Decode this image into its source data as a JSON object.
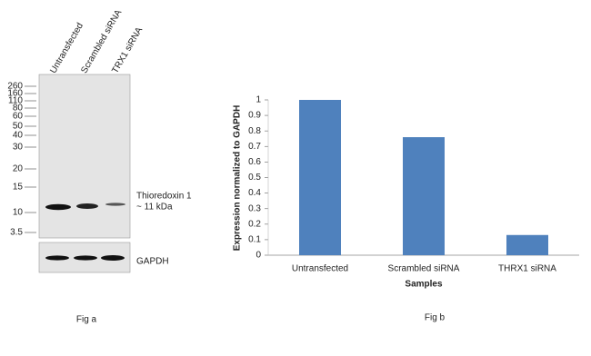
{
  "figure_a": {
    "lanes": [
      "Untransfected",
      "Scrambled siRNA",
      "TRX1 siRNA"
    ],
    "ladder": [
      "260",
      "160",
      "110",
      "80",
      "60",
      "50",
      "40",
      "30",
      "20",
      "15",
      "10",
      "3.5"
    ],
    "band_label": "Thioredoxin 1",
    "band_size": "~ 11 kDa",
    "loading_label": "GAPDH",
    "caption": "Fig a"
  },
  "chart_data": {
    "type": "bar",
    "caption": "Fig b",
    "x_label": "Samples",
    "y_label": "Expression  normalized to GAPDH",
    "categories": [
      "Untransfected",
      "Scrambled siRNA",
      "THRX1 siRNA"
    ],
    "values": [
      1,
      0.76,
      0.13
    ],
    "color": "#4f81bd",
    "ylim": [
      0,
      1
    ],
    "yticks": [
      0,
      0.1,
      0.2,
      0.3,
      0.4,
      0.5,
      0.6,
      0.7,
      0.8,
      0.9,
      1
    ],
    "grid": false
  }
}
